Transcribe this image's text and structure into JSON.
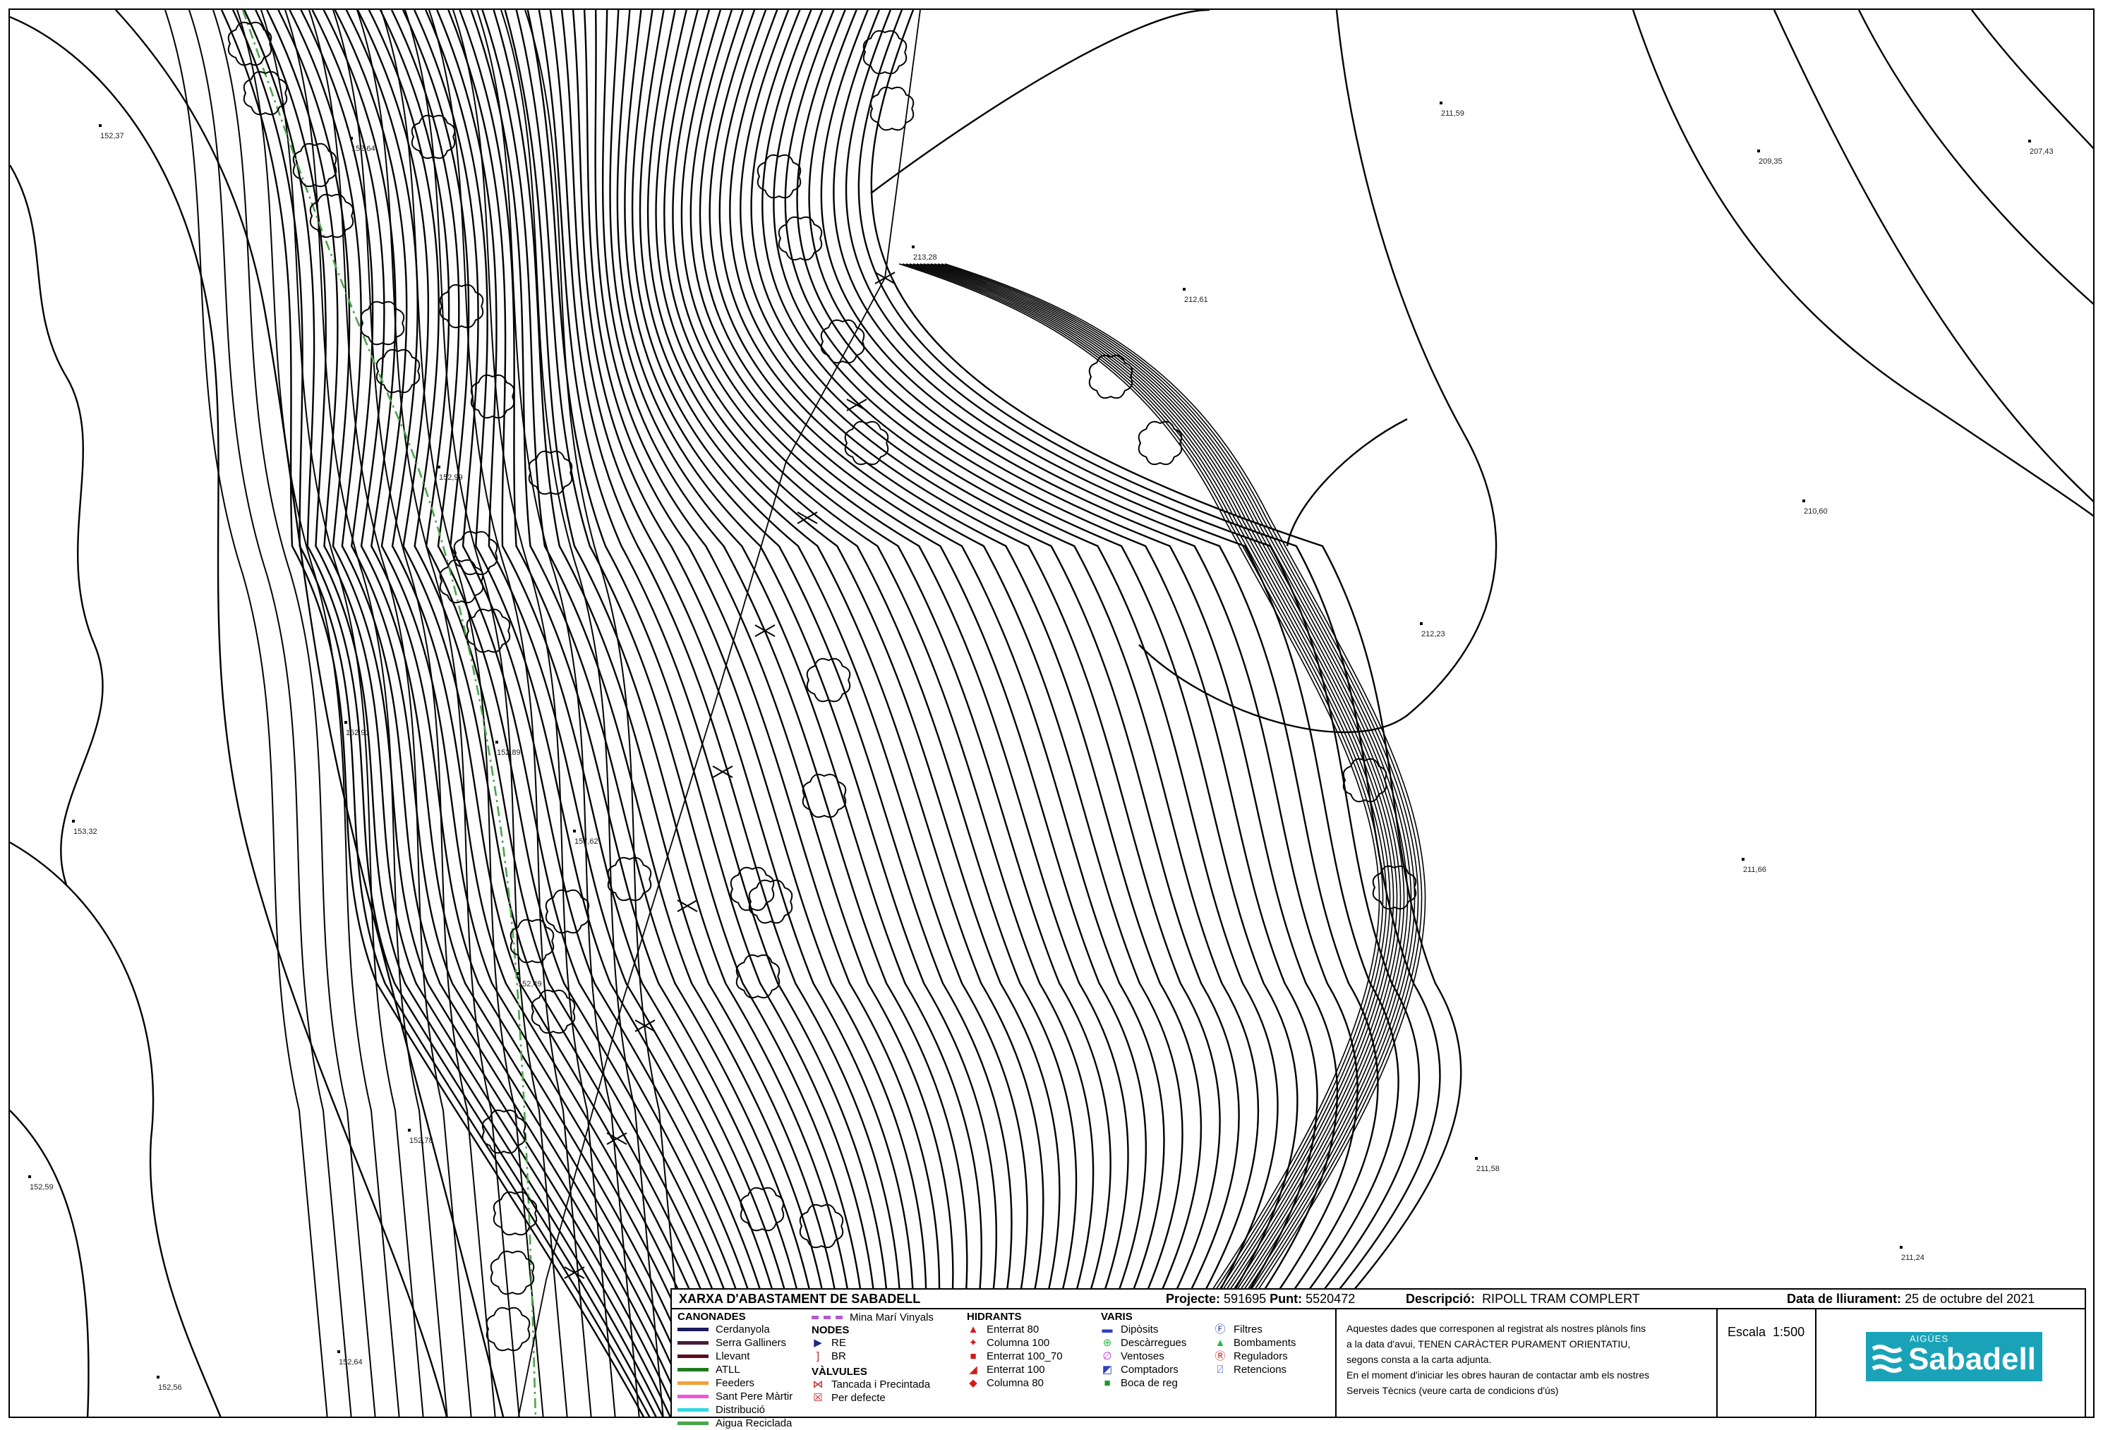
{
  "spot_heights": [
    {
      "label": "152,37"
    },
    {
      "label": "152,64"
    },
    {
      "label": "152,91"
    },
    {
      "label": "153,32"
    },
    {
      "label": "157,62"
    },
    {
      "label": "152,49"
    },
    {
      "label": "152,78"
    },
    {
      "label": "152,59"
    },
    {
      "label": "152,64"
    },
    {
      "label": "152,56"
    },
    {
      "label": "152,99"
    },
    {
      "label": "152,89"
    },
    {
      "label": "211,59"
    },
    {
      "label": "209,35"
    },
    {
      "label": "207,43"
    },
    {
      "label": "213,28"
    },
    {
      "label": "212,61"
    },
    {
      "label": "210,60"
    },
    {
      "label": "212,23"
    },
    {
      "label": "211,66"
    },
    {
      "label": "211,58"
    },
    {
      "label": "211,24"
    }
  ],
  "title_block": {
    "network": "XARXA D'ABASTAMENT DE SABADELL",
    "project_label": "Projecte:",
    "project_value": "591695",
    "point_label": "Punt:",
    "point_value": "5520472",
    "description_label": "Descripció:",
    "description_value": "RIPOLL TRAM COMPLERT",
    "date_label": "Data de lliurament:",
    "date_value": "25 de octubre del 2021"
  },
  "legend": {
    "canonades": {
      "heading": "CANONADES",
      "items": [
        {
          "label": "Cerdanyola",
          "color": "#1a1a5e"
        },
        {
          "label": "Serra Galliners",
          "color": "#4a1b3a"
        },
        {
          "label": "Llevant",
          "color": "#5a0f1f"
        },
        {
          "label": "ATLL",
          "color": "#1f7a1f"
        },
        {
          "label": "Feeders",
          "color": "#f2a23a"
        },
        {
          "label": "Sant Pere Màrtir",
          "color": "#f056d6"
        },
        {
          "label": "Distribució",
          "color": "#35d9e0"
        },
        {
          "label": "Aigua Reciclada",
          "color": "#4aa64a"
        }
      ],
      "mina_label": "Mina Marí Vinyals",
      "mina_color": "#b05bd6"
    },
    "nodes": {
      "heading": "NODES",
      "items": [
        {
          "symbol": "▶",
          "label": "RE",
          "color": "#1a2a8a"
        },
        {
          "symbol": "]",
          "label": "BR",
          "color": "#c21b1b"
        }
      ]
    },
    "valvules": {
      "heading": "VÀLVULES",
      "items": [
        {
          "symbol": "⋈",
          "label": "Tancada i Precintada",
          "color": "#c21b1b"
        },
        {
          "symbol": "☒",
          "label": "Per defecte",
          "color": "#c21b1b"
        }
      ]
    },
    "hidrants": {
      "heading": "HIDRANTS",
      "items": [
        {
          "symbol": "▲",
          "label": "Enterrat 80",
          "color": "#d11b1b"
        },
        {
          "symbol": "✦",
          "label": "Columna 100",
          "color": "#d11b1b"
        },
        {
          "symbol": "■",
          "label": "Enterrat 100_70",
          "color": "#d11b1b"
        },
        {
          "symbol": "◢",
          "label": "Enterrat 100",
          "color": "#d11b1b"
        },
        {
          "symbol": "◆",
          "label": "Columna 80",
          "color": "#d11b1b"
        }
      ]
    },
    "varis": {
      "heading": "VARIS",
      "items": [
        {
          "symbol": "▬",
          "label": "Dipòsits",
          "color": "#2a3fbf"
        },
        {
          "symbol": "⊕",
          "label": "Descàrregues",
          "color": "#2fb84a"
        },
        {
          "symbol": "∅",
          "label": "Ventoses",
          "color": "#c23fd6"
        },
        {
          "symbol": "◩",
          "label": "Comptadors",
          "color": "#2a3fbf"
        },
        {
          "symbol": "■",
          "label": "Boca de reg",
          "color": "#1f9a2a"
        }
      ],
      "items2": [
        {
          "symbol": "Ⓕ",
          "label": "Filtres",
          "color": "#2a3fbf"
        },
        {
          "symbol": "▲",
          "label": "Bombaments",
          "color": "#2fb84a"
        },
        {
          "symbol": "Ⓡ",
          "label": "Reguladors",
          "color": "#d11b1b"
        },
        {
          "symbol": "⍁",
          "label": "Retencions",
          "color": "#2a3fbf"
        }
      ]
    }
  },
  "notice": {
    "line1": "Aquestes dades que corresponen al registrat als nostres plànols fins",
    "line2": "a la data d'avui, TENEN CARÀCTER PURAMENT ORIENTATIU,",
    "line3": "segons consta a la carta adjunta.",
    "line4": "En el moment d'iniciar les obres hauran de contactar amb els nostres",
    "line5": "Serveis Tècnics (veure carta de condicions d'ús)"
  },
  "scale": {
    "label": "Escala",
    "value": "1:500"
  },
  "logo": {
    "small": "AIGÜES",
    "big": "Sabadell",
    "color": "#1aa3b8"
  }
}
